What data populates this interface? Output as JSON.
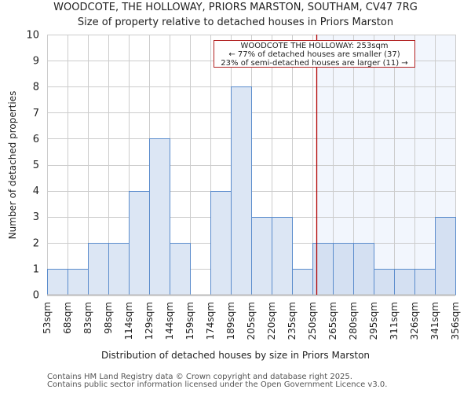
{
  "header": {
    "title": "WOODCOTE, THE HOLLOWAY, PRIORS MARSTON, SOUTHAM, CV47 7RG",
    "subtitle": "Size of property relative to detached houses in Priors Marston"
  },
  "footer": {
    "line1": "Contains HM Land Registry data © Crown copyright and database right 2025.",
    "line2": "Contains public sector information licensed under the Open Government Licence v3.0."
  },
  "annotation": {
    "line1": "WOODCOTE THE HOLLOWAY: 253sqm",
    "line2": "← 77% of detached houses are smaller (37)",
    "line3": "23% of semi-detached houses are larger (11) →"
  },
  "colors": {
    "bar_fill": "#dce6f4",
    "bar_fill_highlight": "#d4e0f2",
    "bar_stroke": "#5b8ccc",
    "highlight_region": "#f2f6fd",
    "marker_line": "#b00000",
    "grid": "#cccccc",
    "annotation_border": "#b22222"
  },
  "chart_data": {
    "type": "bar",
    "title": "WOODCOTE, THE HOLLOWAY, PRIORS MARSTON, SOUTHAM, CV47 7RG",
    "subtitle": "Size of property relative to detached houses in Priors Marston",
    "xlabel": "Distribution of detached houses by size in Priors Marston",
    "ylabel": "Number of detached properties",
    "ylim": [
      0,
      10
    ],
    "yticks": [
      0,
      1,
      2,
      3,
      4,
      5,
      6,
      7,
      8,
      9,
      10
    ],
    "grid": true,
    "bin_edges_labels": [
      "53sqm",
      "68sqm",
      "83sqm",
      "98sqm",
      "114sqm",
      "129sqm",
      "144sqm",
      "159sqm",
      "174sqm",
      "189sqm",
      "205sqm",
      "220sqm",
      "235sqm",
      "250sqm",
      "265sqm",
      "280sqm",
      "295sqm",
      "311sqm",
      "326sqm",
      "341sqm",
      "356sqm"
    ],
    "categories": [
      "53-68sqm",
      "68-83sqm",
      "83-98sqm",
      "98-114sqm",
      "114-129sqm",
      "129-144sqm",
      "144-159sqm",
      "159-174sqm",
      "174-189sqm",
      "189-205sqm",
      "205-220sqm",
      "220-235sqm",
      "235-250sqm",
      "250-265sqm",
      "265-280sqm",
      "280-295sqm",
      "295-311sqm",
      "311-326sqm",
      "326-341sqm",
      "341-356sqm"
    ],
    "values": [
      1,
      1,
      2,
      2,
      4,
      6,
      2,
      0,
      4,
      8,
      3,
      3,
      1,
      2,
      2,
      2,
      1,
      1,
      1,
      3
    ],
    "marker": {
      "value_sqm": 253,
      "label": "WOODCOTE THE HOLLOWAY: 253sqm"
    },
    "annotations": [
      "WOODCOTE THE HOLLOWAY: 253sqm",
      "← 77% of detached houses are smaller (37)",
      "23% of semi-detached houses are larger (11) →"
    ]
  }
}
